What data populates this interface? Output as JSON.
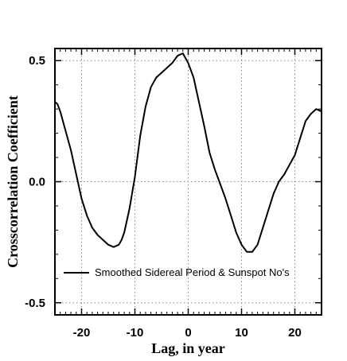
{
  "chart_data": {
    "type": "line",
    "xlabel": "Lag, in year",
    "ylabel": "Crosscorrelation Coefficient",
    "xlim": [
      -25,
      25
    ],
    "ylim": [
      -0.55,
      0.55
    ],
    "x_ticks": [
      -20,
      -10,
      0,
      10,
      20
    ],
    "x_tick_labels": [
      "-20",
      "-10",
      "0",
      "10",
      "20"
    ],
    "y_ticks": [
      -0.5,
      0.0,
      0.5
    ],
    "y_tick_labels": [
      "-0.5",
      "0.0",
      "0.5"
    ],
    "grid": true,
    "legend_position": "bottom-center",
    "series": [
      {
        "name": "Smoothed Sidereal Period & Sunspot No's",
        "color": "#000000",
        "x": [
          -25,
          -24.5,
          -24,
          -23,
          -22,
          -21,
          -20,
          -19,
          -18,
          -17,
          -16,
          -15,
          -14,
          -13,
          -12.5,
          -12,
          -11,
          -10,
          -9,
          -8,
          -7,
          -6,
          -5,
          -4,
          -3,
          -2,
          -1,
          0,
          1,
          2,
          3,
          4,
          5,
          6,
          7,
          8,
          9,
          10,
          11,
          12,
          13,
          14,
          15,
          16,
          17,
          18,
          19,
          20,
          21,
          22,
          23,
          24,
          25
        ],
        "values": [
          0.33,
          0.32,
          0.29,
          0.21,
          0.13,
          0.03,
          -0.07,
          -0.14,
          -0.19,
          -0.22,
          -0.24,
          -0.26,
          -0.27,
          -0.26,
          -0.24,
          -0.21,
          -0.11,
          0.02,
          0.19,
          0.31,
          0.39,
          0.43,
          0.45,
          0.47,
          0.49,
          0.52,
          0.53,
          0.49,
          0.43,
          0.33,
          0.23,
          0.12,
          0.05,
          -0.01,
          -0.07,
          -0.14,
          -0.21,
          -0.26,
          -0.29,
          -0.29,
          -0.26,
          -0.19,
          -0.12,
          -0.05,
          0.0,
          0.03,
          0.07,
          0.11,
          0.18,
          0.25,
          0.28,
          0.3,
          0.29
        ]
      }
    ]
  }
}
